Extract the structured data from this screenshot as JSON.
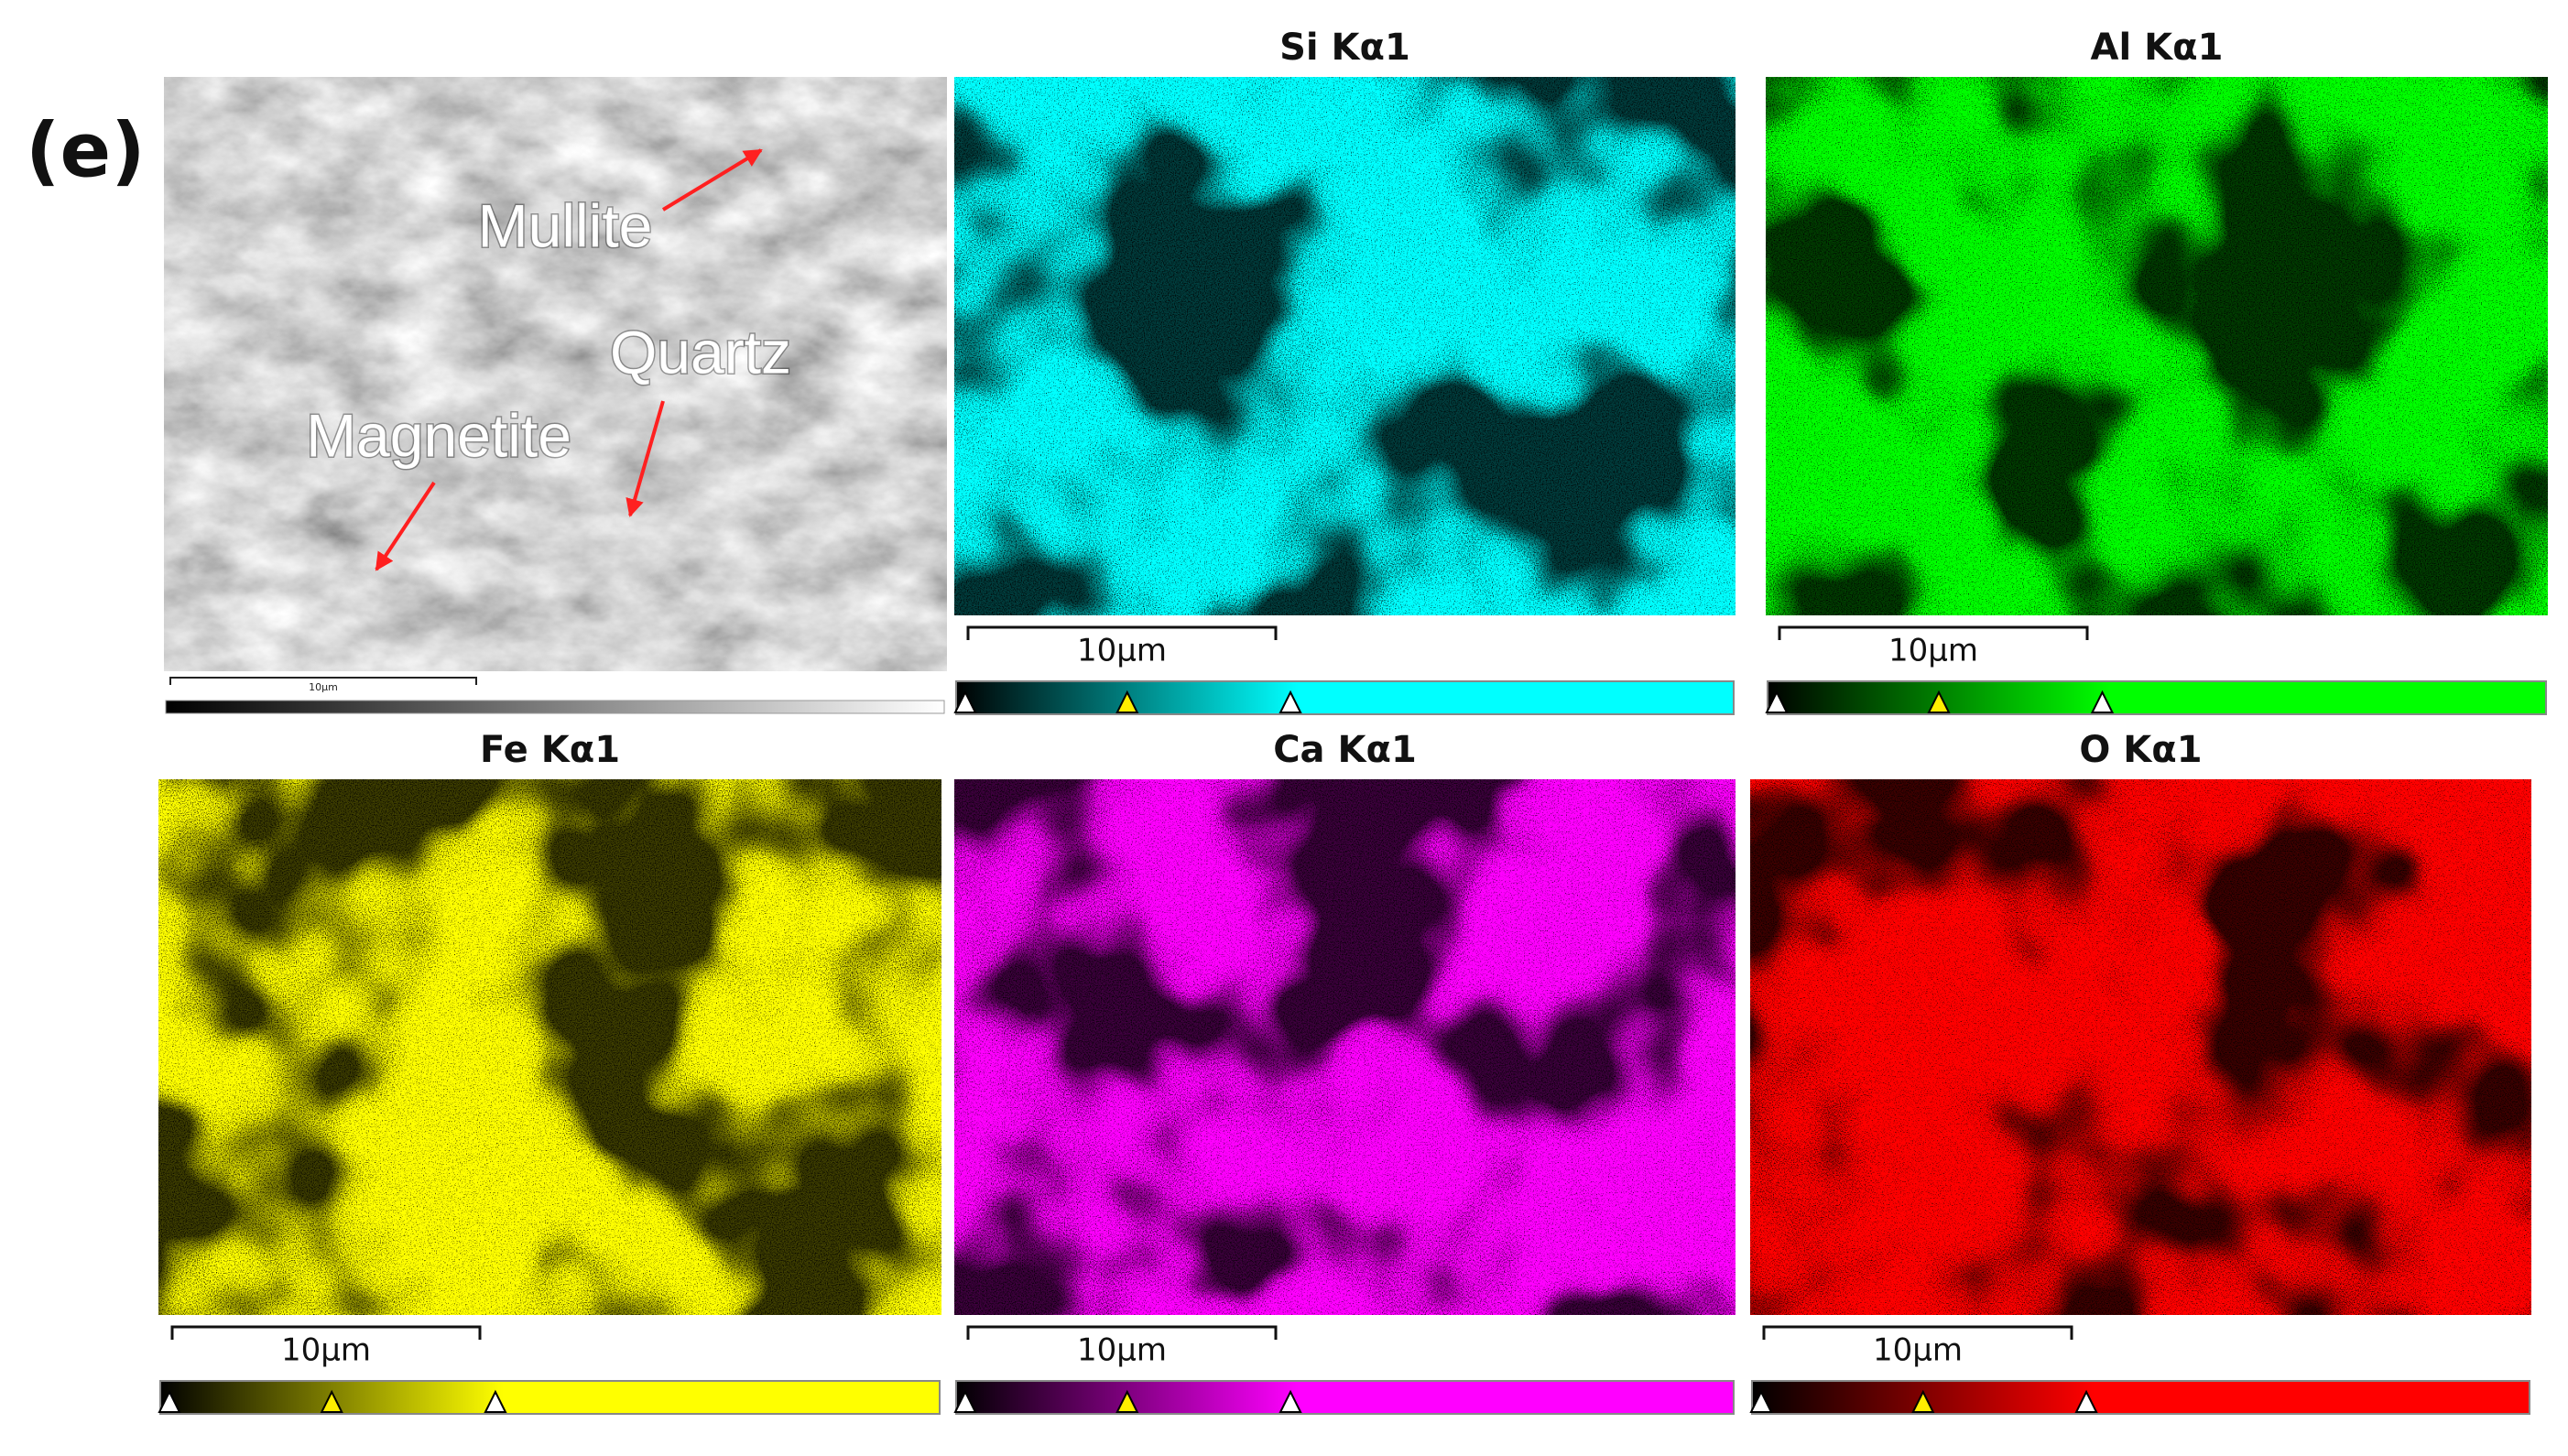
{
  "panel_label": "(e)",
  "sem": {
    "annotations": [
      "Mullite",
      "Quartz",
      "Magnetite"
    ],
    "scale_label": "10µm"
  },
  "maps": [
    {
      "title": "Si Kα1",
      "scale_label": "10µm",
      "color": "#00ffff"
    },
    {
      "title": "Al Kα1",
      "scale_label": "10µm",
      "color": "#00ff00"
    },
    {
      "title": "Fe Kα1",
      "scale_label": "10µm",
      "color": "#ffff00"
    },
    {
      "title": "Ca Kα1",
      "scale_label": "10µm",
      "color": "#ff00ff"
    },
    {
      "title": "O Kα1",
      "scale_label": "10µm",
      "color": "#ff0000"
    }
  ]
}
